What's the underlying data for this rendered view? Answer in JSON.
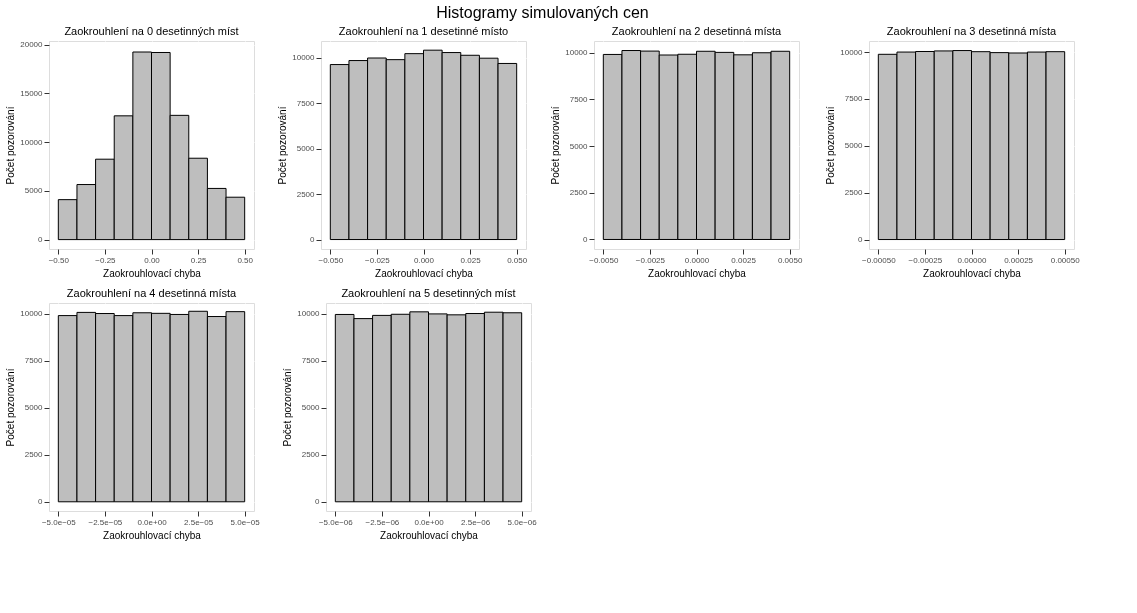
{
  "chart_data": [
    {
      "type": "histogram",
      "title": "Zaokrouhlení na 0 desetinných míst",
      "xlabel": "Zaokrouhlovací chyba",
      "ylabel": "Počet pozorování",
      "annotations": [
        "Histogramy simulovaných cen"
      ],
      "color": "#bebebe",
      "grid": true,
      "bins": [
        -0.5,
        -0.4,
        -0.3,
        -0.2,
        -0.1,
        0.0,
        0.1,
        0.2,
        0.3,
        0.4,
        0.5
      ],
      "values": [
        4100,
        5650,
        8250,
        12700,
        19250,
        19200,
        12750,
        8350,
        5250,
        4350
      ],
      "xlim": [
        -0.55,
        0.55
      ],
      "xticks": [
        {
          "value": -0.5,
          "label": "−0.50"
        },
        {
          "value": -0.25,
          "label": "−0.25"
        },
        {
          "value": 0,
          "label": "0.00"
        },
        {
          "value": 0.25,
          "label": "0.25"
        },
        {
          "value": 0.5,
          "label": "0.50"
        }
      ],
      "ylim": [
        -965,
        20380
      ],
      "yticks": [
        0,
        5000,
        10000,
        15000,
        20000
      ]
    },
    {
      "type": "histogram",
      "title": "Zaokrouhlení na 1 desetinné místo",
      "xlabel": "Zaokrouhlovací chyba",
      "ylabel": "Počet pozorování",
      "color": "#bebebe",
      "grid": true,
      "bins": [
        -0.05,
        -0.04,
        -0.03,
        -0.02,
        -0.01,
        0.0,
        0.01,
        0.02,
        0.03,
        0.04,
        0.05
      ],
      "values": [
        9620,
        9840,
        9980,
        9890,
        10220,
        10410,
        10280,
        10130,
        9970,
        9680
      ],
      "xlim": [
        -0.055,
        0.055
      ],
      "xticks": [
        {
          "value": -0.05,
          "label": "−0.050"
        },
        {
          "value": -0.025,
          "label": "−0.025"
        },
        {
          "value": 0,
          "label": "0.000"
        },
        {
          "value": 0.025,
          "label": "0.025"
        },
        {
          "value": 0.05,
          "label": "0.050"
        }
      ],
      "ylim": [
        -520,
        10915
      ],
      "yticks": [
        0,
        2500,
        5000,
        7500,
        10000
      ]
    },
    {
      "type": "histogram",
      "title": "Zaokrouhlení na 2 desetinná místa",
      "xlabel": "Zaokrouhlovací chyba",
      "ylabel": "Počet pozorování",
      "color": "#bebebe",
      "grid": true,
      "bins": [
        -0.005,
        -0.004,
        -0.003,
        -0.002,
        -0.001,
        0.0,
        0.001,
        0.002,
        0.003,
        0.004,
        0.005
      ],
      "values": [
        9910,
        10120,
        10090,
        9880,
        9920,
        10080,
        10020,
        9890,
        10000,
        10080
      ],
      "xlim": [
        -0.0055,
        0.0055
      ],
      "xticks": [
        {
          "value": -0.005,
          "label": "−0.0050"
        },
        {
          "value": -0.0025,
          "label": "−0.0025"
        },
        {
          "value": 0,
          "label": "0.0000"
        },
        {
          "value": 0.0025,
          "label": "0.0025"
        },
        {
          "value": 0.005,
          "label": "0.0050"
        }
      ],
      "ylim": [
        -510,
        10630
      ],
      "yticks": [
        0,
        2500,
        5000,
        7500,
        10000
      ]
    },
    {
      "type": "histogram",
      "title": "Zaokrouhlení na 3 desetinná místa",
      "xlabel": "Zaokrouhlovací chyba",
      "ylabel": "Počet pozorování",
      "color": "#bebebe",
      "grid": true,
      "bins": [
        -0.0005,
        -0.0004,
        -0.0003,
        -0.0002,
        -0.0001,
        0.0,
        0.0001,
        0.0002,
        0.0003,
        0.0004,
        0.0005
      ],
      "values": [
        9880,
        10000,
        10030,
        10060,
        10080,
        10020,
        9970,
        9950,
        10000,
        10020
      ],
      "xlim": [
        -0.00055,
        0.00055
      ],
      "xticks": [
        {
          "value": -0.0005,
          "label": "−0.00050"
        },
        {
          "value": -0.00025,
          "label": "−0.00025"
        },
        {
          "value": 0,
          "label": "0.00000"
        },
        {
          "value": 0.00025,
          "label": "0.00025"
        },
        {
          "value": 0.0005,
          "label": "0.00050"
        }
      ],
      "ylim": [
        -505,
        10590
      ],
      "yticks": [
        0,
        2500,
        5000,
        7500,
        10000
      ]
    },
    {
      "type": "histogram",
      "title": "Zaokrouhlení na 4 desetinná místa",
      "xlabel": "Zaokrouhlovací chyba",
      "ylabel": "Počet pozorování",
      "color": "#bebebe",
      "grid": true,
      "bins": [
        -5e-05,
        -4e-05,
        -3e-05,
        -2e-05,
        -1e-05,
        0.0,
        1e-05,
        2e-05,
        3e-05,
        4e-05,
        5e-05
      ],
      "values": [
        9910,
        10080,
        10020,
        9910,
        10060,
        10030,
        9970,
        10140,
        9860,
        10120
      ],
      "xlim": [
        -5.5e-05,
        5.5e-05
      ],
      "xticks": [
        {
          "value": -5e-05,
          "label": "−5.0e−05"
        },
        {
          "value": -2.5e-05,
          "label": "−2.5e−05"
        },
        {
          "value": 0,
          "label": "0.0e+00"
        },
        {
          "value": 2.5e-05,
          "label": "2.5e−05"
        },
        {
          "value": 5e-05,
          "label": "5.0e−05"
        }
      ],
      "ylim": [
        -490,
        10580
      ],
      "yticks": [
        0,
        2500,
        5000,
        7500,
        10000
      ]
    },
    {
      "type": "histogram",
      "title": "Zaokrouhlení na 5 desetinných míst",
      "xlabel": "Zaokrouhlovací chyba",
      "ylabel": "Počet pozorování",
      "color": "#bebebe",
      "grid": true,
      "bins": [
        -5e-06,
        -4e-06,
        -3e-06,
        -2e-06,
        -1e-06,
        0.0,
        1e-06,
        2e-06,
        3e-06,
        4e-06,
        5e-06
      ],
      "values": [
        9970,
        9750,
        9920,
        9980,
        10110,
        10000,
        9950,
        10020,
        10090,
        10060
      ],
      "xlim": [
        -5.5e-06,
        5.5e-06
      ],
      "xticks": [
        {
          "value": -5e-06,
          "label": "−5.0e−06"
        },
        {
          "value": -2.5e-06,
          "label": "−2.5e−06"
        },
        {
          "value": 0,
          "label": "0.0e+00"
        },
        {
          "value": 2.5e-06,
          "label": "2.5e−06"
        },
        {
          "value": 5e-06,
          "label": "5.0e−06"
        }
      ],
      "ylim": [
        -490,
        10580
      ],
      "yticks": [
        0,
        2500,
        5000,
        7500,
        10000
      ]
    }
  ]
}
